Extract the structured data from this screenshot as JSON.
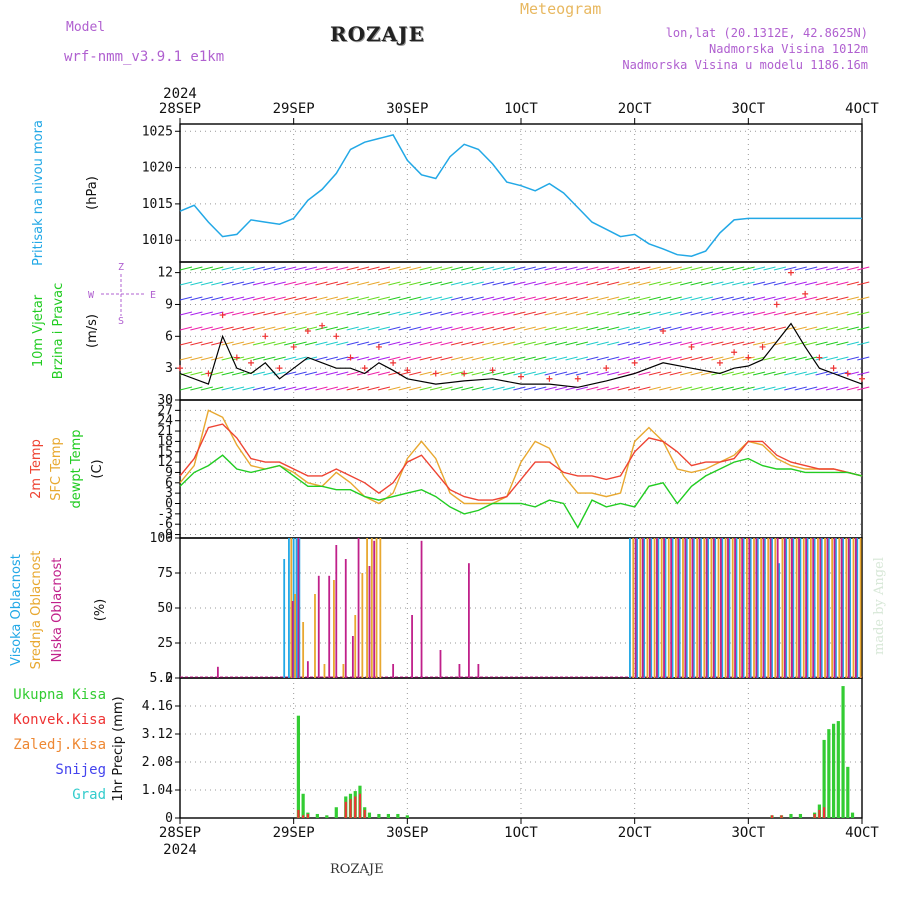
{
  "header": {
    "title": "ROZAJE",
    "model_label": "Model",
    "model_name": "wrf-nmm_v3.9.1 e1km",
    "meteogram": "Meteogram",
    "lonlat": "lon,lat (20.1312E, 42.8625N)",
    "elevation": "Nadmorska Visina 1012m",
    "model_elevation": "Nadmorska Visina u modelu 1186.16m",
    "footer": "ROZAJE",
    "made_by": "made by Angel"
  },
  "time_axis": {
    "year": "2024",
    "labels": [
      "28SEP",
      "29SEP",
      "30SEP",
      "1OCT",
      "2OCT",
      "3OCT",
      "4OCT"
    ],
    "range_hours": [
      0,
      144
    ]
  },
  "colors": {
    "pressure": "#22a8e6",
    "wind_avg": "#000000",
    "gust": "#ee3333",
    "t2m": "#ee4433",
    "sfc": "#e8a830",
    "dewpt": "#22cc22",
    "high_cloud": "#22a8e6",
    "mid_cloud": "#e8a830",
    "low_cloud": "#c0208a",
    "total_precip": "#33cc33",
    "conv_precip": "#ee3333",
    "frz_precip": "#ee8833",
    "snow": "#4444ee",
    "hail": "#33cccc"
  },
  "chart_data": [
    {
      "type": "line",
      "id": "pressure",
      "ylabel_name": "Pritisak na nivou mora",
      "ylabel_unit": "(hPa)",
      "ylim": [
        1007,
        1026
      ],
      "yticks": [
        1010,
        1015,
        1020,
        1025
      ],
      "grid": true,
      "series": [
        {
          "x": [
            0,
            3,
            6,
            9,
            12,
            15,
            18,
            21,
            24,
            27,
            30,
            33,
            36,
            39,
            42,
            45,
            48,
            51,
            54,
            57,
            60,
            63,
            66,
            69,
            72,
            75,
            78,
            81,
            84,
            87,
            90,
            93,
            96,
            99,
            102,
            105,
            108,
            111,
            114,
            117,
            120,
            123,
            126,
            129,
            132,
            135,
            138,
            141,
            144
          ],
          "values": [
            1014,
            1014.8,
            1012.5,
            1010.5,
            1010.8,
            1012.8,
            1012.5,
            1012.2,
            1013,
            1015.5,
            1017,
            1019.2,
            1022.5,
            1023.5,
            1024,
            1024.5,
            1021,
            1019,
            1018.5,
            1021.5,
            1023.2,
            1022.5,
            1020.5,
            1018,
            1017.5,
            1016.8,
            1017.8,
            1016.5,
            1014.5,
            1012.5,
            1011.5,
            1010.5,
            1010.8,
            1009.5,
            1008.8,
            1008,
            1007.8,
            1008.5,
            1011,
            1012.8,
            1013,
            1013,
            1013,
            1013,
            1013,
            1013,
            1013,
            1013,
            1013
          ]
        }
      ]
    },
    {
      "type": "line",
      "id": "wind",
      "ylabel_name": "10m Vjetar Brzina i Pravac",
      "ylabel_unit": "(m/s)",
      "compass": {
        "n": "Z",
        "w": "W",
        "e": "E",
        "s": "S"
      },
      "ylim": [
        0,
        13
      ],
      "yticks": [
        0,
        3,
        6,
        9,
        12
      ],
      "grid": true,
      "series": [
        {
          "name": "average",
          "x": [
            0,
            6,
            9,
            12,
            15,
            18,
            21,
            24,
            27,
            30,
            33,
            36,
            39,
            42,
            45,
            48,
            54,
            60,
            66,
            72,
            78,
            84,
            90,
            96,
            102,
            108,
            114,
            117,
            120,
            123,
            126,
            129,
            132,
            135,
            138,
            141,
            144
          ],
          "values": [
            2.5,
            1.5,
            6,
            3,
            2.5,
            3.5,
            2,
            3,
            4,
            3.5,
            3,
            3,
            2.5,
            3.5,
            2.8,
            2,
            1.5,
            1.8,
            2,
            1.5,
            1.5,
            1.2,
            1.8,
            2.5,
            3.5,
            3,
            2.5,
            3,
            3.2,
            3.8,
            5.5,
            7.2,
            5,
            3,
            2.5,
            2,
            1.5
          ]
        },
        {
          "name": "gust",
          "x": [
            0,
            6,
            9,
            12,
            15,
            18,
            21,
            24,
            27,
            30,
            33,
            36,
            39,
            42,
            45,
            48,
            54,
            60,
            66,
            72,
            78,
            84,
            90,
            96,
            102,
            108,
            114,
            117,
            120,
            123,
            126,
            129,
            132,
            135,
            138,
            141,
            144
          ],
          "values": [
            3,
            2.5,
            8,
            4,
            3.5,
            6,
            3,
            5,
            6.5,
            7,
            6,
            4,
            3,
            5,
            3.5,
            2.8,
            2.5,
            2.5,
            2.8,
            2.2,
            2,
            2,
            3,
            3.5,
            6.5,
            5,
            3.5,
            4.5,
            4,
            5,
            9,
            12,
            10,
            4,
            3,
            2.5,
            2
          ]
        }
      ]
    },
    {
      "type": "line",
      "id": "temperature",
      "ylabel_names": [
        "2m Temp",
        "SFC Temp",
        "dewpt Temp"
      ],
      "ylabel_unit": "(C)",
      "ylim": [
        -10,
        30
      ],
      "yticks": [
        -9,
        -6,
        -3,
        0,
        3,
        6,
        9,
        12,
        15,
        18,
        21,
        24,
        27,
        30
      ],
      "grid": true,
      "series": [
        {
          "name": "2m Temp",
          "x": [
            0,
            3,
            6,
            9,
            12,
            15,
            18,
            21,
            24,
            27,
            30,
            33,
            36,
            39,
            42,
            45,
            48,
            51,
            54,
            57,
            60,
            63,
            66,
            69,
            72,
            75,
            78,
            81,
            84,
            87,
            90,
            93,
            96,
            99,
            102,
            105,
            108,
            111,
            114,
            117,
            120,
            123,
            126,
            129,
            132,
            135,
            138,
            141,
            144
          ],
          "values": [
            8,
            13,
            22,
            23,
            19,
            13,
            12,
            12,
            10,
            8,
            8,
            10,
            8,
            6,
            3,
            6,
            12,
            14,
            9,
            4,
            2,
            1,
            1,
            2,
            7,
            12,
            12,
            9,
            8,
            8,
            7,
            8,
            15,
            19,
            18,
            15,
            11,
            12,
            12,
            13,
            18,
            18,
            14,
            12,
            11,
            10,
            10,
            9,
            8
          ]
        },
        {
          "name": "SFC Temp",
          "x": [
            0,
            3,
            6,
            9,
            12,
            15,
            18,
            21,
            24,
            27,
            30,
            33,
            36,
            39,
            42,
            45,
            48,
            51,
            54,
            57,
            60,
            63,
            66,
            69,
            72,
            75,
            78,
            81,
            84,
            87,
            90,
            93,
            96,
            99,
            102,
            105,
            108,
            111,
            114,
            117,
            120,
            123,
            126,
            129,
            132,
            135,
            138,
            141,
            144
          ],
          "values": [
            6,
            11,
            27,
            25,
            17,
            11,
            10,
            11,
            9,
            6,
            5,
            9,
            6,
            2,
            0,
            3,
            13,
            18,
            13,
            3,
            0,
            0,
            0,
            2,
            12,
            18,
            16,
            8,
            3,
            3,
            2,
            3,
            18,
            22,
            18,
            10,
            9,
            10,
            12,
            14,
            18,
            17,
            13,
            11,
            10,
            10,
            10,
            9,
            8
          ]
        },
        {
          "name": "dewpt Temp",
          "x": [
            0,
            3,
            6,
            9,
            12,
            15,
            18,
            21,
            24,
            27,
            30,
            33,
            36,
            39,
            42,
            45,
            48,
            51,
            54,
            57,
            60,
            63,
            66,
            69,
            72,
            75,
            78,
            81,
            84,
            87,
            90,
            93,
            96,
            99,
            102,
            105,
            108,
            111,
            114,
            117,
            120,
            123,
            126,
            129,
            132,
            135,
            138,
            141,
            144
          ],
          "values": [
            5,
            9,
            11,
            14,
            10,
            9,
            10,
            11,
            8,
            5,
            5,
            4,
            4,
            2,
            1,
            2,
            3,
            4,
            2,
            -1,
            -3,
            -2,
            0,
            0,
            0,
            -1,
            1,
            0,
            -7,
            1,
            -1,
            0,
            -1,
            5,
            6,
            0,
            5,
            8,
            10,
            12,
            13,
            11,
            10,
            10,
            9,
            9,
            9,
            9,
            8
          ]
        }
      ]
    },
    {
      "type": "bar",
      "id": "cloud",
      "ylabel_names": [
        "Visoka Oblacnost",
        "Srednja Oblacnost",
        "Niska Oblacnost"
      ],
      "ylabel_unit": "(%)",
      "ylim": [
        0,
        100
      ],
      "yticks": [
        0,
        25,
        50,
        75,
        100
      ],
      "grid": true,
      "series": [
        {
          "name": "Visoka Oblacnost",
          "x": [
            22,
            23,
            24,
            24.6,
            25.2,
            95,
            96.5,
            98,
            99.5,
            101,
            102.5,
            104,
            105.5,
            107,
            108.5,
            110,
            111.5,
            113,
            114.5,
            116,
            117.5,
            119,
            120.5,
            122,
            123.5,
            125,
            126.5,
            128,
            129.5,
            131,
            132.5,
            134,
            135.5,
            137,
            138.5,
            140,
            141.5,
            143
          ],
          "values": [
            85,
            100,
            100,
            100,
            100,
            100,
            100,
            100,
            100,
            100,
            100,
            100,
            100,
            100,
            100,
            100,
            100,
            100,
            100,
            100,
            100,
            100,
            100,
            100,
            100,
            100,
            82,
            100,
            100,
            100,
            100,
            100,
            100,
            100,
            100,
            100,
            100,
            100
          ]
        },
        {
          "name": "Srednja Oblacnost",
          "x": [
            23.5,
            24.3,
            26,
            28.5,
            30.5,
            32.5,
            34.5,
            37,
            38.5,
            39.5,
            40.5,
            41.5,
            42.3,
            95.7,
            97.2,
            98.7,
            100.2,
            101.7,
            103.2,
            104.7,
            106.2,
            107.7,
            109.2,
            110.7,
            112.2,
            113.7,
            115.2,
            116.7,
            118.2,
            119.7,
            121.2,
            122.7,
            124.2,
            125.7,
            127.2,
            128.7,
            130.2,
            131.7,
            133.2,
            134.7,
            136.2,
            137.7,
            139.2,
            140.7,
            142.2,
            143.7
          ],
          "values": [
            100,
            60,
            40,
            60,
            10,
            70,
            10,
            45,
            75,
            100,
            100,
            100,
            100,
            100,
            100,
            100,
            100,
            100,
            100,
            100,
            100,
            100,
            100,
            100,
            100,
            100,
            100,
            100,
            100,
            100,
            100,
            100,
            100,
            100,
            100,
            100,
            100,
            100,
            100,
            100,
            100,
            100,
            100,
            100,
            100,
            100
          ]
        },
        {
          "name": "Niska Oblacnost",
          "x": [
            8,
            23.8,
            25,
            27,
            29.3,
            31.5,
            33,
            35,
            36.5,
            37.7,
            40,
            41,
            45,
            49,
            51,
            55,
            59,
            61,
            63,
            96.2,
            97.7,
            99.2,
            100.7,
            102.2,
            103.7,
            105.2,
            106.7,
            108.2,
            109.7,
            111.2,
            112.7,
            114.2,
            115.7,
            117.2,
            118.7,
            120.2,
            121.7,
            123.2,
            124.7,
            126.2,
            127.7,
            129.2,
            130.7,
            132.2,
            133.7,
            135.2,
            136.7,
            138.2,
            139.7,
            141.2,
            142.7
          ],
          "values": [
            8,
            55,
            100,
            12,
            73,
            73,
            95,
            85,
            30,
            100,
            80,
            98,
            10,
            45,
            98,
            20,
            10,
            82,
            10,
            100,
            100,
            100,
            100,
            100,
            100,
            100,
            100,
            100,
            100,
            100,
            100,
            100,
            100,
            100,
            100,
            100,
            100,
            100,
            100,
            100,
            100,
            100,
            100,
            100,
            100,
            100,
            100,
            100,
            100,
            100,
            100
          ]
        }
      ]
    },
    {
      "type": "bar",
      "id": "precip",
      "legend": [
        "Ukupna Kisa",
        "Konvek.Kisa",
        "Zaledj.Kisa",
        "Snijeg",
        "Grad"
      ],
      "ylabel_unit": "1hr Precip (mm)",
      "ylim": [
        0,
        5.2
      ],
      "yticks": [
        0,
        1.04,
        2.08,
        3.12,
        4.16,
        5.2
      ],
      "grid": true,
      "series": [
        {
          "name": "Ukupna Kisa",
          "x": [
            25,
            26,
            27,
            29,
            31,
            33,
            35,
            36,
            37,
            38,
            39,
            40,
            42,
            44,
            46,
            48,
            125,
            127,
            129,
            131,
            134,
            135,
            136,
            137,
            138,
            139,
            140,
            141,
            142
          ],
          "values": [
            3.8,
            0.9,
            0.2,
            0.15,
            0.1,
            0.4,
            0.8,
            0.9,
            1.0,
            1.2,
            0.4,
            0.2,
            0.15,
            0.15,
            0.15,
            0.1,
            0.1,
            0.1,
            0.15,
            0.15,
            0.2,
            0.5,
            2.9,
            3.3,
            3.5,
            3.6,
            4.9,
            1.9,
            0.2
          ]
        },
        {
          "name": "Konvek.Kisa",
          "x": [
            25,
            26,
            27,
            35,
            36,
            37,
            38,
            39,
            125,
            127,
            134,
            135,
            136
          ],
          "values": [
            0.3,
            0.1,
            0.15,
            0.6,
            0.7,
            0.8,
            0.9,
            0.3,
            0.1,
            0.1,
            0.15,
            0.3,
            0.4
          ]
        }
      ]
    }
  ]
}
